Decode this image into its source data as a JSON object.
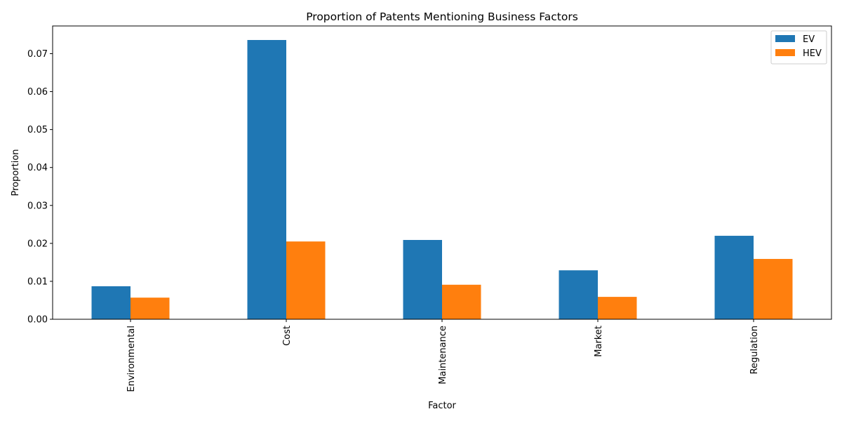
{
  "chart_data": {
    "type": "bar",
    "title": "Proportion of Patents Mentioning Business Factors",
    "xlabel": "Factor",
    "ylabel": "Proportion",
    "categories": [
      "Environmental",
      "Cost",
      "Maintenance",
      "Market",
      "Regulation"
    ],
    "series": [
      {
        "name": "EV",
        "color": "#1f77b4",
        "values": [
          0.0087,
          0.0736,
          0.0209,
          0.0129,
          0.022
        ]
      },
      {
        "name": "HEV",
        "color": "#ff7f0e",
        "values": [
          0.0057,
          0.0205,
          0.0091,
          0.0059,
          0.0159
        ]
      }
    ],
    "ylim": [
      0,
      0.0773
    ],
    "yticks": [
      0,
      0.01,
      0.02,
      0.03,
      0.04,
      0.05,
      0.06,
      0.07
    ],
    "ytick_labels": [
      "0.00",
      "0.01",
      "0.02",
      "0.03",
      "0.04",
      "0.05",
      "0.06",
      "0.07"
    ],
    "legend_position": "top-right",
    "grid": false
  }
}
